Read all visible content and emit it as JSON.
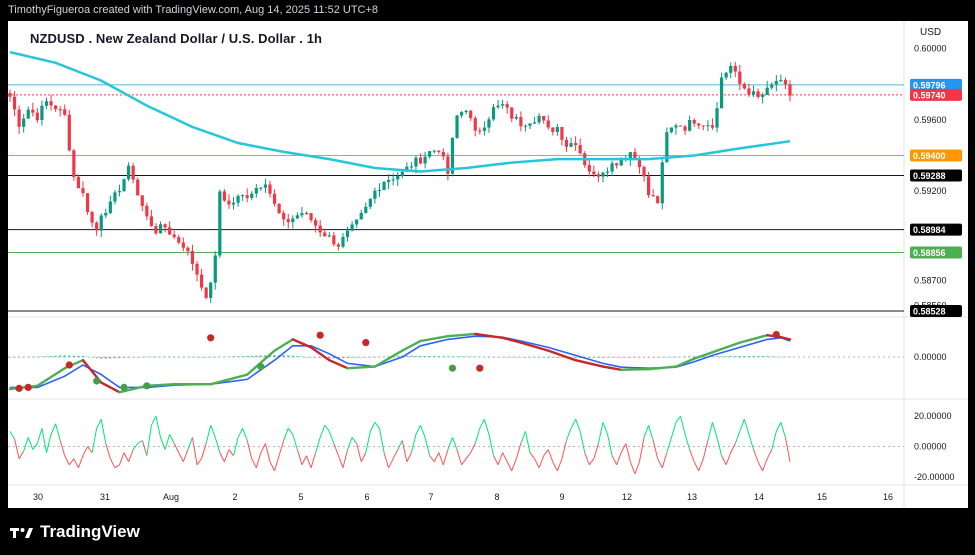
{
  "header": {
    "attribution": "TimothyFigueroa created with TradingView.com, Aug 14, 2025 11:52 UTC+8"
  },
  "footer": {
    "brand": "TradingView"
  },
  "chart_data": {
    "type": "candlestick",
    "title": "NZDUSD . New Zealand Dollar / U.S. Dollar . 1h",
    "currency": "USD",
    "x_ticks": [
      "30",
      "31",
      "Aug",
      "2",
      "5",
      "6",
      "7",
      "8",
      "9",
      "12",
      "13",
      "14",
      "15",
      "16"
    ],
    "price_axis_ticks": [
      "0.60000",
      "0.59600",
      "0.59200",
      "0.58700",
      "0.58560"
    ],
    "price_range": [
      0.5848,
      0.6004
    ],
    "price_levels": [
      {
        "label": "0.59796",
        "value": 0.59796,
        "color": "#5bb3e6",
        "tag": "#2196f3",
        "kind": "horizontal line"
      },
      {
        "label": "0.59740",
        "value": 0.5974,
        "color": "#f23645",
        "tag": "#f23645",
        "kind": "last price"
      },
      {
        "label": "0.59400",
        "value": 0.594,
        "color": "#ff9800",
        "tag": "#ff9800",
        "kind": "horizontal line"
      },
      {
        "label": "0.59288",
        "value": 0.59288,
        "color": "#131722",
        "tag": "#000000",
        "kind": "horizontal line"
      },
      {
        "label": "0.58984",
        "value": 0.58984,
        "color": "#131722",
        "tag": "#000000",
        "kind": "horizontal line"
      },
      {
        "label": "0.58856",
        "value": 0.58856,
        "color": "#4caf50",
        "tag": "#4caf50",
        "kind": "horizontal line"
      },
      {
        "label": "0.58528",
        "value": 0.58528,
        "color": "#131722",
        "tag": "#000000",
        "kind": "horizontal line"
      }
    ],
    "close_path": [
      [
        0,
        0.5973
      ],
      [
        2,
        0.5958
      ],
      [
        4,
        0.5966
      ],
      [
        6,
        0.5962
      ],
      [
        8,
        0.597
      ],
      [
        10,
        0.5967
      ],
      [
        12,
        0.5962
      ],
      [
        14,
        0.5928
      ],
      [
        16,
        0.5918
      ],
      [
        18,
        0.5902
      ],
      [
        19,
        0.5898
      ],
      [
        20,
        0.5908
      ],
      [
        22,
        0.5912
      ],
      [
        24,
        0.5922
      ],
      [
        26,
        0.5932
      ],
      [
        27,
        0.5928
      ],
      [
        28,
        0.5918
      ],
      [
        30,
        0.5905
      ],
      [
        32,
        0.5898
      ],
      [
        34,
        0.59
      ],
      [
        36,
        0.5894
      ],
      [
        38,
        0.589
      ],
      [
        40,
        0.588
      ],
      [
        42,
        0.5868
      ],
      [
        43,
        0.5858
      ],
      [
        44,
        0.587
      ],
      [
        45,
        0.5882
      ],
      [
        46,
        0.592
      ],
      [
        48,
        0.5912
      ],
      [
        50,
        0.5916
      ],
      [
        52,
        0.5918
      ],
      [
        54,
        0.5922
      ],
      [
        56,
        0.5926
      ],
      [
        58,
        0.5912
      ],
      [
        60,
        0.5902
      ],
      [
        62,
        0.5905
      ],
      [
        64,
        0.5908
      ],
      [
        66,
        0.5904
      ],
      [
        68,
        0.5898
      ],
      [
        70,
        0.5894
      ],
      [
        72,
        0.589
      ],
      [
        74,
        0.5896
      ],
      [
        76,
        0.5902
      ],
      [
        78,
        0.591
      ],
      [
        80,
        0.592
      ],
      [
        82,
        0.5926
      ],
      [
        84,
        0.5928
      ],
      [
        86,
        0.593
      ],
      [
        88,
        0.5935
      ],
      [
        90,
        0.5938
      ],
      [
        92,
        0.5942
      ],
      [
        94,
        0.5944
      ],
      [
        96,
        0.593
      ],
      [
        97,
        0.5948
      ],
      [
        98,
        0.5962
      ],
      [
        100,
        0.5967
      ],
      [
        102,
        0.5952
      ],
      [
        104,
        0.5958
      ],
      [
        106,
        0.5966
      ],
      [
        108,
        0.5968
      ],
      [
        110,
        0.5962
      ],
      [
        112,
        0.5958
      ],
      [
        114,
        0.596
      ],
      [
        116,
        0.5962
      ],
      [
        118,
        0.5954
      ],
      [
        120,
        0.5956
      ],
      [
        122,
        0.5946
      ],
      [
        124,
        0.5948
      ],
      [
        126,
        0.5936
      ],
      [
        128,
        0.5928
      ],
      [
        130,
        0.5932
      ],
      [
        132,
        0.5935
      ],
      [
        134,
        0.5938
      ],
      [
        136,
        0.5942
      ],
      [
        138,
        0.5936
      ],
      [
        140,
        0.5918
      ],
      [
        142,
        0.5914
      ],
      [
        143,
        0.5934
      ],
      [
        144,
        0.5952
      ],
      [
        146,
        0.5958
      ],
      [
        148,
        0.5956
      ],
      [
        150,
        0.596
      ],
      [
        152,
        0.5958
      ],
      [
        154,
        0.5958
      ],
      [
        155,
        0.5966
      ],
      [
        156,
        0.5984
      ],
      [
        158,
        0.599
      ],
      [
        160,
        0.598
      ],
      [
        162,
        0.5976
      ],
      [
        164,
        0.5972
      ],
      [
        166,
        0.5976
      ],
      [
        168,
        0.5982
      ],
      [
        170,
        0.5978
      ],
      [
        171,
        0.5974
      ]
    ],
    "moving_average": {
      "color": "#26c6da",
      "points": [
        [
          0,
          0.5998
        ],
        [
          10,
          0.5992
        ],
        [
          20,
          0.5982
        ],
        [
          30,
          0.5968
        ],
        [
          40,
          0.5956
        ],
        [
          50,
          0.5947
        ],
        [
          60,
          0.5942
        ],
        [
          70,
          0.5938
        ],
        [
          80,
          0.5933
        ],
        [
          90,
          0.5931
        ],
        [
          100,
          0.5933
        ],
        [
          110,
          0.5936
        ],
        [
          120,
          0.5938
        ],
        [
          130,
          0.5938
        ],
        [
          140,
          0.5938
        ],
        [
          150,
          0.594
        ],
        [
          160,
          0.5944
        ],
        [
          171,
          0.5948
        ]
      ]
    },
    "oscillator_1": {
      "zero_label": "0.00000",
      "fast_line_colors": [
        "#4caf50",
        "#c62828"
      ],
      "slow_line_color": "#2962ff",
      "cross_marker_colors": [
        "#c62828",
        "#43a047"
      ],
      "fast": [
        [
          0,
          -1.0
        ],
        [
          6,
          -0.9
        ],
        [
          12,
          -0.35
        ],
        [
          16,
          -0.1
        ],
        [
          20,
          -0.8
        ],
        [
          24,
          -1.1
        ],
        [
          30,
          -0.9
        ],
        [
          36,
          -0.85
        ],
        [
          44,
          -0.85
        ],
        [
          52,
          -0.55
        ],
        [
          58,
          0.2
        ],
        [
          62,
          0.55
        ],
        [
          66,
          0.3
        ],
        [
          70,
          -0.1
        ],
        [
          74,
          -0.35
        ],
        [
          80,
          -0.3
        ],
        [
          86,
          0.2
        ],
        [
          90,
          0.5
        ],
        [
          96,
          0.65
        ],
        [
          102,
          0.72
        ],
        [
          108,
          0.6
        ],
        [
          112,
          0.45
        ],
        [
          118,
          0.2
        ],
        [
          124,
          -0.1
        ],
        [
          130,
          -0.3
        ],
        [
          134,
          -0.4
        ],
        [
          140,
          -0.38
        ],
        [
          146,
          -0.3
        ],
        [
          150,
          -0.05
        ],
        [
          154,
          0.15
        ],
        [
          160,
          0.45
        ],
        [
          166,
          0.68
        ],
        [
          169,
          0.62
        ],
        [
          171,
          0.55
        ]
      ],
      "slow": [
        [
          0,
          -0.95
        ],
        [
          6,
          -0.95
        ],
        [
          12,
          -0.6
        ],
        [
          16,
          -0.25
        ],
        [
          20,
          -0.55
        ],
        [
          24,
          -0.95
        ],
        [
          30,
          -0.95
        ],
        [
          36,
          -0.88
        ],
        [
          44,
          -0.85
        ],
        [
          52,
          -0.7
        ],
        [
          58,
          -0.1
        ],
        [
          62,
          0.35
        ],
        [
          66,
          0.35
        ],
        [
          70,
          0.1
        ],
        [
          74,
          -0.2
        ],
        [
          80,
          -0.3
        ],
        [
          86,
          0.0
        ],
        [
          90,
          0.35
        ],
        [
          96,
          0.55
        ],
        [
          102,
          0.65
        ],
        [
          108,
          0.62
        ],
        [
          112,
          0.5
        ],
        [
          118,
          0.3
        ],
        [
          124,
          0.05
        ],
        [
          130,
          -0.2
        ],
        [
          134,
          -0.32
        ],
        [
          140,
          -0.35
        ],
        [
          146,
          -0.32
        ],
        [
          150,
          -0.15
        ],
        [
          154,
          0.05
        ],
        [
          160,
          0.3
        ],
        [
          166,
          0.55
        ],
        [
          169,
          0.6
        ],
        [
          171,
          0.5
        ]
      ],
      "markers": [
        [
          2,
          -0.98,
          "#c62828"
        ],
        [
          4,
          -0.95,
          "#c62828"
        ],
        [
          13,
          -0.25,
          "#c62828"
        ],
        [
          19,
          -0.75,
          "#43a047"
        ],
        [
          25,
          -0.95,
          "#43a047"
        ],
        [
          30,
          -0.9,
          "#43a047"
        ],
        [
          44,
          0.6,
          "#c62828"
        ],
        [
          55,
          -0.3,
          "#43a047"
        ],
        [
          68,
          0.68,
          "#c62828"
        ],
        [
          78,
          0.45,
          "#c62828"
        ],
        [
          97,
          -0.35,
          "#43a047"
        ],
        [
          103,
          -0.35,
          "#c62828"
        ],
        [
          168,
          0.7,
          "#c62828"
        ]
      ]
    },
    "oscillator_2": {
      "tick_labels": [
        "20.00000",
        "0.00000",
        "-20.00000"
      ],
      "range": [
        -24,
        30
      ],
      "above_color": "#00e676",
      "below_color": "#ff5252",
      "values": [
        10,
        5,
        -8,
        -3,
        6,
        -2,
        2,
        12,
        -4,
        8,
        15,
        4,
        -6,
        -12,
        -8,
        -14,
        -6,
        0,
        -4,
        12,
        18,
        2,
        -8,
        -14,
        -12,
        -4,
        -10,
        -2,
        2,
        4,
        -6,
        14,
        20,
        6,
        -2,
        8,
        2,
        -4,
        -10,
        -2,
        6,
        -12,
        -8,
        2,
        14,
        6,
        -4,
        -10,
        -2,
        -6,
        6,
        12,
        4,
        -8,
        -14,
        -4,
        2,
        -10,
        -16,
        -6,
        4,
        12,
        8,
        -2,
        -12,
        -6,
        -14,
        -4,
        6,
        14,
        10,
        2,
        -6,
        -14,
        -2,
        6,
        2,
        -10,
        -4,
        10,
        16,
        12,
        -4,
        -14,
        -8,
        -2,
        4,
        -10,
        -4,
        8,
        14,
        6,
        -6,
        -10,
        -4,
        -12,
        -2,
        6,
        -2,
        -12,
        -8,
        -4,
        2,
        12,
        18,
        8,
        -6,
        -12,
        -4,
        -10,
        -16,
        -8,
        2,
        10,
        -4,
        -8,
        -14,
        -6,
        -2,
        -10,
        -16,
        -8,
        4,
        12,
        18,
        10,
        -4,
        -12,
        -8,
        2,
        16,
        8,
        -6,
        -12,
        -4,
        2,
        -10,
        -18,
        -10,
        6,
        14,
        4,
        -8,
        -14,
        -4,
        6,
        16,
        20,
        8,
        -2,
        -10,
        -16,
        -8,
        4,
        16,
        6,
        -6,
        -12,
        -4,
        2,
        10,
        18,
        8,
        -2,
        -10,
        -16,
        -8,
        -2,
        10,
        16,
        6,
        -10,
        -16
      ]
    }
  }
}
